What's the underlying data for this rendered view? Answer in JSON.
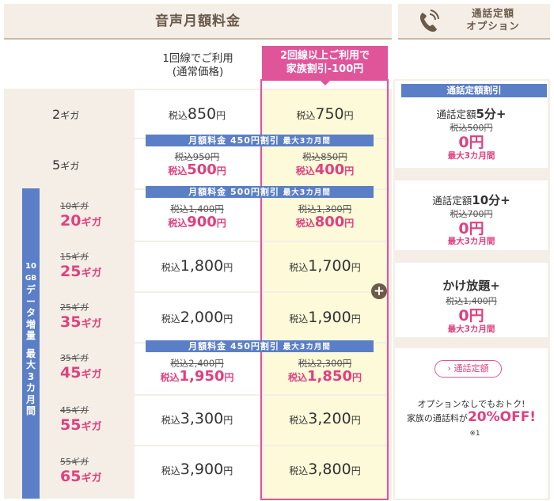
{
  "header": {
    "title": "音声月額料金",
    "option_title_line1": "通話定額",
    "option_title_line2": "オプション"
  },
  "columns": {
    "single_line1": "1回線でご利用",
    "single_line2": "(通常価格)",
    "family_line1": "2回線以上ご利用で",
    "family_line2": "家族割引-100円"
  },
  "price_prefix": "税込",
  "price_suffix": "円",
  "rows": [
    {
      "label": "2",
      "unit": "ギガ",
      "single": "850",
      "family": "750"
    },
    {
      "label": "5",
      "unit": "ギガ",
      "single_old": "税込950円",
      "single": "500",
      "family_old": "税込850円",
      "family": "400"
    },
    {
      "label_old": "10ギガ",
      "label": "20",
      "unit": "ギガ",
      "single_old": "税込1,400円",
      "single": "900",
      "family_old": "税込1,300円",
      "family": "800"
    },
    {
      "label_old": "15ギガ",
      "label": "25",
      "unit": "ギガ",
      "single": "1,800",
      "family": "1,700"
    },
    {
      "label_old": "25ギガ",
      "label": "35",
      "unit": "ギガ",
      "single": "2,000",
      "family": "1,900"
    },
    {
      "label_old": "35ギガ",
      "label": "45",
      "unit": "ギガ",
      "single_old": "税込2,400円",
      "single": "1,950",
      "family_old": "税込2,300円",
      "family": "1,850"
    },
    {
      "label_old": "45ギガ",
      "label": "55",
      "unit": "ギガ",
      "single": "3,300",
      "family": "3,200"
    },
    {
      "label_old": "55ギガ",
      "label": "65",
      "unit": "ギガ",
      "single": "3,900",
      "family": "3,800"
    }
  ],
  "banners": {
    "b450_a": "月額料金 450円割引",
    "b450_a_limit": "最大3カ月間",
    "b500": "月額料金 500円割引",
    "b500_limit": "最大3カ月間",
    "b450_b": "月額料金 450円割引",
    "b450_b_limit": "最大3カ月間"
  },
  "sidebar": {
    "lines": [
      "10",
      "GB",
      "デ",
      "ー",
      "タ",
      "増",
      "量",
      "",
      "最",
      "大",
      "3",
      "カ",
      "月",
      "間"
    ]
  },
  "plus_symbol": "+",
  "options": {
    "discount_tag": "通話定額割引",
    "items": [
      {
        "prefix": "通話定額",
        "name": "5分+",
        "old": "税込500円",
        "zero": "0円",
        "limit": "最大3カ月間"
      },
      {
        "prefix": "通話定額",
        "name": "10分+",
        "old": "税込700円",
        "zero": "0円",
        "limit": "最大3カ月間"
      },
      {
        "prefix": "",
        "name": "かけ放題+",
        "old": "税込1,400円",
        "zero": "0円",
        "limit": "最大3カ月間"
      }
    ],
    "button": "› 通話定額",
    "note_line1": "オプションなしでもおトク!",
    "note_line2_prefix": "家族の通話料が",
    "note_line2_big": "20%OFF!",
    "note_line3": "※1"
  },
  "colors": {
    "pink": "#e0559a",
    "blue": "#5b7fc6",
    "beige": "#f4eee6",
    "yellow": "#fdfad9"
  }
}
